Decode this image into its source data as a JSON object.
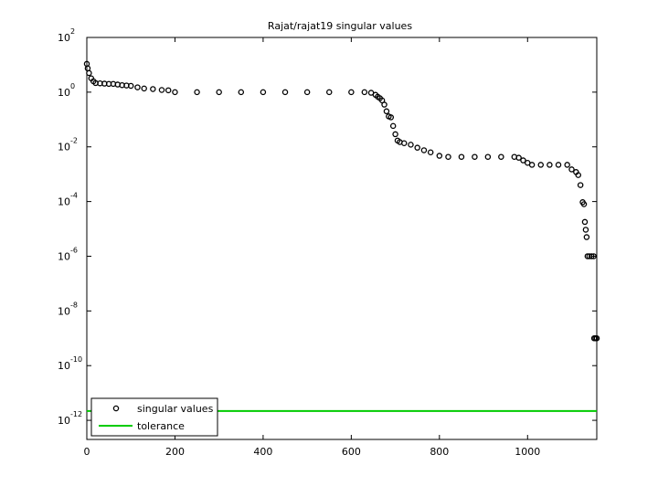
{
  "chart_data": {
    "type": "scatter",
    "title": "Rajat/rajat19 singular values",
    "log_y": true,
    "legend_position": "southwest",
    "xlim": [
      0,
      1157
    ],
    "xticks": [
      0,
      200,
      400,
      600,
      800,
      1000
    ],
    "ylim": [
      2e-13,
      100
    ],
    "yticks": [
      {
        "value": 100,
        "label": "10",
        "sup": "2"
      },
      {
        "value": 1,
        "label": "10",
        "sup": "0"
      },
      {
        "value": 0.01,
        "label": "10",
        "sup": "-2"
      },
      {
        "value": 0.0001,
        "label": "10",
        "sup": "-4"
      },
      {
        "value": 1e-06,
        "label": "10",
        "sup": "-6"
      },
      {
        "value": 1e-08,
        "label": "10",
        "sup": "-8"
      },
      {
        "value": 1e-10,
        "label": "10",
        "sup": "-10"
      },
      {
        "value": 1e-12,
        "label": "10",
        "sup": "-12"
      }
    ],
    "series": [
      {
        "name": "singular values",
        "color": "#000000",
        "marker": "circle",
        "x": [
          0,
          2,
          5,
          10,
          15,
          20,
          30,
          40,
          50,
          60,
          70,
          80,
          90,
          100,
          115,
          130,
          150,
          170,
          185,
          200,
          250,
          300,
          350,
          400,
          450,
          500,
          550,
          600,
          630,
          645,
          655,
          660,
          665,
          670,
          675,
          680,
          685,
          690,
          695,
          700,
          705,
          710,
          720,
          735,
          750,
          765,
          780,
          800,
          820,
          850,
          880,
          910,
          940,
          970,
          980,
          990,
          1000,
          1010,
          1030,
          1050,
          1070,
          1090,
          1100,
          1110,
          1115,
          1120,
          1125,
          1128,
          1130,
          1132,
          1134,
          1136,
          1140,
          1145,
          1150,
          1151,
          1154,
          1157
        ],
        "values": [
          10.8,
          7.4,
          5,
          3.2,
          2.5,
          2.15,
          2.1,
          2.05,
          2.0,
          2.0,
          1.9,
          1.8,
          1.75,
          1.7,
          1.5,
          1.36,
          1.3,
          1.2,
          1.17,
          1.0,
          1.0,
          1.0,
          1.0,
          1.0,
          1.0,
          1.0,
          1.0,
          1.0,
          1.0,
          0.95,
          0.8,
          0.68,
          0.6,
          0.5,
          0.35,
          0.2,
          0.13,
          0.12,
          0.058,
          0.029,
          0.017,
          0.015,
          0.0136,
          0.012,
          0.0093,
          0.0075,
          0.0063,
          0.0047,
          0.0043,
          0.0043,
          0.0043,
          0.0043,
          0.0043,
          0.0043,
          0.004,
          0.0032,
          0.0026,
          0.0022,
          0.0022,
          0.0022,
          0.0022,
          0.0022,
          0.0015,
          0.0012,
          0.00093,
          0.0004,
          9.5e-05,
          8e-05,
          1.8e-05,
          9.3e-06,
          5e-06,
          1e-06,
          1e-06,
          1e-06,
          1e-06,
          1e-09,
          1e-09,
          1e-09
        ]
      },
      {
        "name": "tolerance",
        "color": "#00cc00",
        "marker": "line",
        "x": [
          0,
          1157
        ],
        "values": [
          2.2e-12,
          2.2e-12
        ]
      }
    ]
  }
}
